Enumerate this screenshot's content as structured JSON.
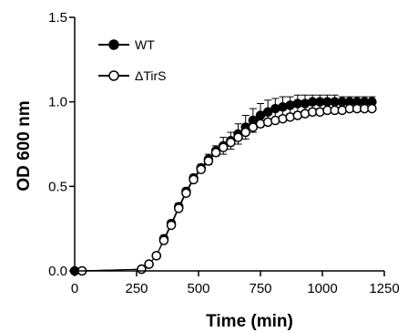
{
  "chart_data": {
    "type": "scatter",
    "xlabel": "Time (min)",
    "ylabel": "OD 600 nm",
    "xlim": [
      0,
      1250
    ],
    "ylim": [
      0,
      1.5
    ],
    "xticks": [
      "0",
      "250",
      "500",
      "750",
      "1000",
      "1250"
    ],
    "yticks": [
      "0.0",
      "0.5",
      "1.0",
      "1.5"
    ],
    "legend": "top-left",
    "grid": false,
    "series": [
      {
        "name": "WT",
        "marker": "filled-circle",
        "color": "#000000",
        "x": [
          0,
          270,
          300,
          330,
          360,
          390,
          420,
          450,
          480,
          510,
          540,
          570,
          600,
          630,
          660,
          690,
          720,
          750,
          780,
          810,
          840,
          870,
          900,
          930,
          960,
          990,
          1020,
          1050,
          1080,
          1110,
          1140,
          1170,
          1200
        ],
        "y": [
          0.0,
          0.01,
          0.04,
          0.09,
          0.19,
          0.28,
          0.38,
          0.47,
          0.55,
          0.61,
          0.66,
          0.71,
          0.74,
          0.77,
          0.81,
          0.85,
          0.89,
          0.92,
          0.94,
          0.96,
          0.97,
          0.98,
          0.99,
          0.99,
          1.0,
          1.0,
          1.0,
          1.0,
          1.0,
          1.0,
          1.0,
          1.0,
          1.0
        ],
        "error": [
          0,
          0.01,
          0.01,
          0.01,
          0.02,
          0.02,
          0.02,
          0.02,
          0.02,
          0.02,
          0.03,
          0.03,
          0.05,
          0.05,
          0.06,
          0.07,
          0.07,
          0.07,
          0.07,
          0.06,
          0.06,
          0.05,
          0.05,
          0.05,
          0.04,
          0.04,
          0.04,
          0.04,
          0.03,
          0.03,
          0.03,
          0.03,
          0.03
        ]
      },
      {
        "name": "ΔTirS",
        "marker": "open-circle",
        "color": "#000000",
        "x": [
          30,
          270,
          300,
          330,
          360,
          390,
          420,
          450,
          480,
          510,
          540,
          570,
          600,
          630,
          660,
          690,
          720,
          750,
          780,
          810,
          840,
          870,
          900,
          930,
          960,
          990,
          1020,
          1050,
          1080,
          1110,
          1140,
          1170,
          1200
        ],
        "y": [
          0.0,
          0.01,
          0.04,
          0.09,
          0.18,
          0.27,
          0.37,
          0.46,
          0.54,
          0.6,
          0.65,
          0.7,
          0.73,
          0.76,
          0.79,
          0.82,
          0.85,
          0.87,
          0.88,
          0.89,
          0.9,
          0.91,
          0.92,
          0.93,
          0.94,
          0.94,
          0.95,
          0.95,
          0.95,
          0.96,
          0.96,
          0.96,
          0.96
        ]
      }
    ]
  },
  "legend": [
    {
      "label": "WT"
    },
    {
      "label": "ΔTirS"
    }
  ]
}
